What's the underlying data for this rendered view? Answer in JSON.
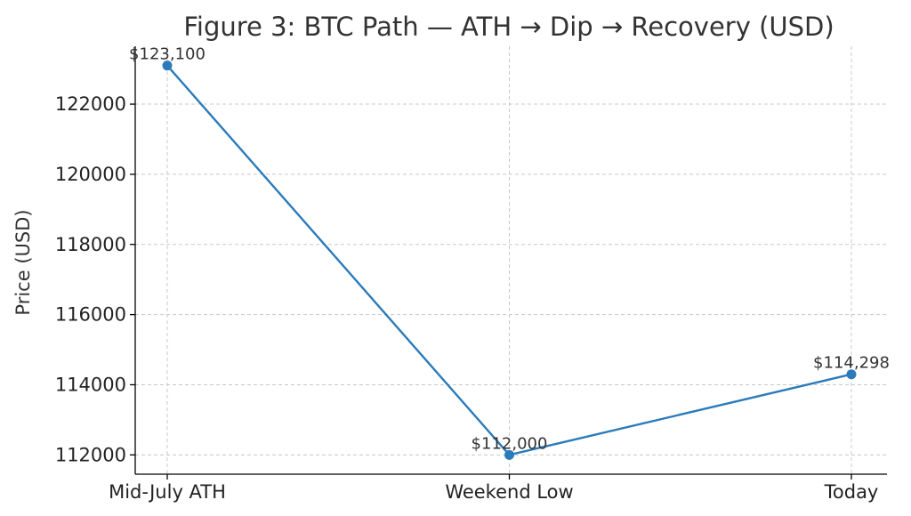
{
  "chart_data": {
    "type": "line",
    "title": "Figure 3: BTC Path — ATH → Dip → Recovery (USD)",
    "xlabel": "",
    "ylabel": "Price (USD)",
    "categories": [
      "Mid-July ATH",
      "Weekend Low",
      "Today"
    ],
    "series": [
      {
        "values": [
          123100,
          112000,
          114298
        ]
      }
    ],
    "data_labels": [
      "$123,100",
      "$112,000",
      "$114,298"
    ],
    "yticks": [
      112000,
      114000,
      116000,
      118000,
      120000,
      122000
    ],
    "ylim": [
      111450,
      123650
    ],
    "grid": true,
    "line_color": "#2b7bba"
  }
}
